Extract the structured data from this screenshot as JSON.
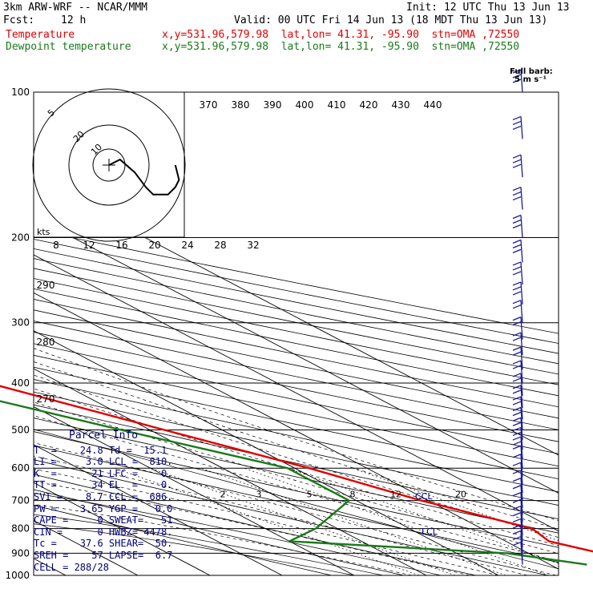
{
  "header": {
    "model": "3km ARW-WRF -- NCAR/MMM",
    "init": "Init: 12 UTC Thu 13 Jun 13",
    "fcst_label": "Fcst:",
    "fcst_value": "12 h",
    "valid": "Valid: 00 UTC Fri 14 Jun 13 (18 MDT Thu 13 Jun 13)",
    "temp_label": "Temperature",
    "temp_info": "x,y=531.96,579.98  lat,lon= 41.31, -95.90  stn=OMA ,72550",
    "dew_label": "Dewpoint temperature",
    "dew_info": "x,y=531.96,579.98  lat,lon= 41.31, -95.90  stn=OMA ,72550"
  },
  "colors": {
    "temperature": "#e00000",
    "dewpoint": "#1a7a1a",
    "parcel": "#00007a",
    "wind": "#1a1aa0"
  },
  "wind_key": {
    "title": "Full barb:",
    "value": "5 m s⁻¹"
  },
  "parcel_info": {
    "title": "Parcel Info",
    "rows": [
      "T  =    24.8 Td =  15.1",
      "LI =     3.0 LCL =  810.",
      "K  =      21 LFC =    0.",
      "TT =      34 EL  =    0.",
      "SVI =    8.7 CCL =  686.",
      "PW =    3.65 YGP =   0.0",
      "CAPE =     0 SWEAT=   51",
      "CIN =      0 HWBZ= 4478.",
      "Tc =    37.6 SHEAR=  50.",
      "SREH =    57 LAPSE=  6.7",
      "CELL = 288/28"
    ]
  },
  "chart_data": {
    "type": "line",
    "title": "",
    "ylabel": "",
    "xlabel": "",
    "pressure_levels": [
      100,
      200,
      300,
      400,
      500,
      600,
      700,
      800,
      900,
      1000
    ],
    "temperature_ticks": [
      -80,
      -70,
      -60,
      -50,
      -40,
      -30,
      -20,
      -10,
      0,
      10,
      20,
      30,
      40
    ],
    "theta_labels_top": [
      370,
      380,
      390,
      400,
      410,
      420,
      430,
      440
    ],
    "theta_labels_left": [
      290,
      280,
      270
    ],
    "mixing_ratio_labels": [
      2,
      3,
      5,
      8,
      12,
      20
    ],
    "hodograph_speed_ticks": [
      8,
      12,
      16,
      20,
      24,
      28,
      32
    ],
    "hodograph_unit": "kts",
    "hodograph_ring_labels": [
      "5",
      "20",
      "10"
    ],
    "level_markers": [
      "LCL",
      "CCL"
    ],
    "series": [
      {
        "name": "Temperature",
        "points": [
          [
            100,
            -60
          ],
          [
            150,
            -57
          ],
          [
            175,
            -57
          ],
          [
            200,
            -55
          ],
          [
            250,
            -45
          ],
          [
            300,
            -36
          ],
          [
            400,
            -20
          ],
          [
            500,
            -8
          ],
          [
            600,
            2
          ],
          [
            700,
            9
          ],
          [
            800,
            17
          ],
          [
            850,
            16
          ],
          [
            900,
            20
          ],
          [
            950,
            24.8
          ]
        ]
      },
      {
        "name": "Dewpoint temperature",
        "points": [
          [
            100,
            -90
          ],
          [
            150,
            -92
          ],
          [
            175,
            -91
          ],
          [
            200,
            -88
          ],
          [
            250,
            -66
          ],
          [
            300,
            -50
          ],
          [
            400,
            -29
          ],
          [
            500,
            -14
          ],
          [
            600,
            -1
          ],
          [
            700,
            -1
          ],
          [
            800,
            -13
          ],
          [
            850,
            -20
          ],
          [
            900,
            7
          ],
          [
            950,
            15.1
          ]
        ]
      }
    ],
    "hodograph": [
      [
        0,
        0
      ],
      [
        3,
        1.5
      ],
      [
        7,
        -2
      ],
      [
        10,
        -6
      ],
      [
        12,
        -8
      ],
      [
        16,
        -8
      ],
      [
        18,
        -6
      ],
      [
        19,
        -4
      ],
      [
        18,
        0
      ]
    ]
  }
}
